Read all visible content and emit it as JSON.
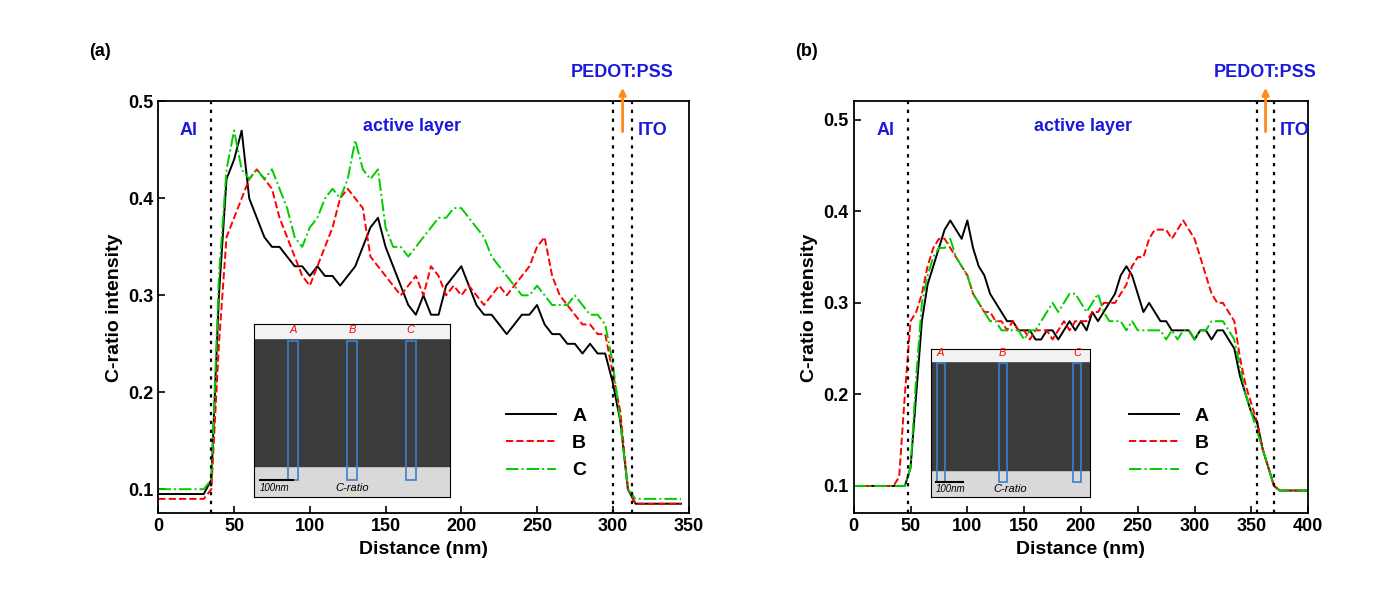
{
  "chart_data": [
    {
      "type": "line",
      "panel": "(a)",
      "x_label": "Distance (nm)",
      "y_label": "C-ratio intensity",
      "layers": {
        "left": "Al",
        "center": "active layer",
        "interlayer": "PEDOT:PSS",
        "right": "ITO"
      },
      "interfaces": [
        35,
        300,
        313
      ],
      "inset": {
        "labels": [
          "A",
          "B",
          "C"
        ],
        "scale": "100nm",
        "caption": "C-ratio"
      },
      "legend": "lower right",
      "xlim": [
        0,
        350
      ],
      "xticks": [
        0,
        50,
        100,
        150,
        200,
        250,
        300,
        350
      ],
      "ylim": [
        0.075,
        0.5
      ],
      "yticks": [
        0.1,
        0.2,
        0.3,
        0.4,
        0.5
      ],
      "x": [
        0,
        5,
        10,
        15,
        20,
        25,
        30,
        35,
        40,
        45,
        50,
        55,
        60,
        65,
        70,
        75,
        80,
        85,
        90,
        95,
        100,
        105,
        110,
        115,
        120,
        125,
        130,
        135,
        140,
        145,
        150,
        155,
        160,
        165,
        170,
        175,
        180,
        185,
        190,
        195,
        200,
        205,
        210,
        215,
        220,
        225,
        230,
        235,
        240,
        245,
        250,
        255,
        260,
        265,
        270,
        275,
        280,
        285,
        290,
        295,
        300,
        305,
        310,
        315,
        320,
        325,
        330,
        335,
        340,
        345
      ],
      "series": [
        {
          "name": "A",
          "color": "#000000",
          "line_style": "solid",
          "values": [
            0.095,
            0.095,
            0.095,
            0.095,
            0.095,
            0.095,
            0.095,
            0.11,
            0.3,
            0.42,
            0.44,
            0.47,
            0.4,
            0.38,
            0.36,
            0.35,
            0.35,
            0.34,
            0.33,
            0.33,
            0.32,
            0.33,
            0.32,
            0.32,
            0.31,
            0.32,
            0.33,
            0.35,
            0.37,
            0.38,
            0.35,
            0.33,
            0.31,
            0.29,
            0.28,
            0.3,
            0.28,
            0.28,
            0.31,
            0.32,
            0.33,
            0.31,
            0.29,
            0.28,
            0.28,
            0.27,
            0.26,
            0.27,
            0.28,
            0.28,
            0.29,
            0.27,
            0.26,
            0.26,
            0.25,
            0.25,
            0.24,
            0.25,
            0.24,
            0.24,
            0.21,
            0.17,
            0.1,
            0.085,
            0.085,
            0.085,
            0.085,
            0.085,
            0.085,
            0.085
          ]
        },
        {
          "name": "B",
          "color": "#ff0000",
          "line_style": "dashed",
          "values": [
            0.09,
            0.09,
            0.09,
            0.09,
            0.09,
            0.09,
            0.09,
            0.1,
            0.25,
            0.36,
            0.38,
            0.4,
            0.42,
            0.43,
            0.42,
            0.41,
            0.38,
            0.36,
            0.34,
            0.32,
            0.31,
            0.33,
            0.35,
            0.37,
            0.4,
            0.41,
            0.4,
            0.39,
            0.34,
            0.33,
            0.32,
            0.31,
            0.3,
            0.31,
            0.32,
            0.3,
            0.33,
            0.32,
            0.3,
            0.31,
            0.3,
            0.31,
            0.3,
            0.29,
            0.3,
            0.31,
            0.3,
            0.31,
            0.32,
            0.33,
            0.35,
            0.36,
            0.32,
            0.3,
            0.29,
            0.28,
            0.27,
            0.27,
            0.26,
            0.26,
            0.22,
            0.18,
            0.1,
            0.085,
            0.085,
            0.085,
            0.085,
            0.085,
            0.085,
            0.085
          ]
        },
        {
          "name": "C",
          "color": "#00cc00",
          "line_style": "dashdot",
          "values": [
            0.1,
            0.1,
            0.1,
            0.1,
            0.1,
            0.1,
            0.1,
            0.11,
            0.32,
            0.43,
            0.47,
            0.43,
            0.42,
            0.43,
            0.42,
            0.43,
            0.41,
            0.39,
            0.36,
            0.35,
            0.37,
            0.38,
            0.4,
            0.41,
            0.4,
            0.42,
            0.46,
            0.43,
            0.42,
            0.43,
            0.37,
            0.35,
            0.35,
            0.34,
            0.35,
            0.36,
            0.37,
            0.38,
            0.38,
            0.39,
            0.39,
            0.38,
            0.37,
            0.36,
            0.34,
            0.33,
            0.32,
            0.31,
            0.3,
            0.3,
            0.31,
            0.3,
            0.29,
            0.29,
            0.29,
            0.3,
            0.29,
            0.28,
            0.28,
            0.27,
            0.23,
            0.17,
            0.1,
            0.09,
            0.09,
            0.09,
            0.09,
            0.09,
            0.09,
            0.09
          ]
        }
      ]
    },
    {
      "type": "line",
      "panel": "(b)",
      "x_label": "Distance (nm)",
      "y_label": "C-ratio intensity",
      "layers": {
        "left": "Al",
        "center": "active layer",
        "interlayer": "PEDOT:PSS",
        "right": "ITO"
      },
      "interfaces": [
        48,
        355,
        370
      ],
      "inset": {
        "labels": [
          "A",
          "B",
          "C"
        ],
        "scale": "100nm",
        "caption": "C-ratio"
      },
      "legend": "lower right",
      "xlim": [
        0,
        400
      ],
      "xticks": [
        0,
        50,
        100,
        150,
        200,
        250,
        300,
        350,
        400
      ],
      "ylim": [
        0.07,
        0.52
      ],
      "yticks": [
        0.1,
        0.2,
        0.3,
        0.4,
        0.5
      ],
      "x": [
        0,
        5,
        10,
        15,
        20,
        25,
        30,
        35,
        40,
        45,
        50,
        55,
        60,
        65,
        70,
        75,
        80,
        85,
        90,
        95,
        100,
        105,
        110,
        115,
        120,
        125,
        130,
        135,
        140,
        145,
        150,
        155,
        160,
        165,
        170,
        175,
        180,
        185,
        190,
        195,
        200,
        205,
        210,
        215,
        220,
        225,
        230,
        235,
        240,
        245,
        250,
        255,
        260,
        265,
        270,
        275,
        280,
        285,
        290,
        295,
        300,
        305,
        310,
        315,
        320,
        325,
        330,
        335,
        340,
        345,
        350,
        355,
        360,
        365,
        370,
        375,
        380,
        385,
        390,
        395,
        400
      ],
      "series": [
        {
          "name": "A",
          "color": "#000000",
          "line_style": "solid",
          "values": [
            0.1,
            0.1,
            0.1,
            0.1,
            0.1,
            0.1,
            0.1,
            0.1,
            0.1,
            0.1,
            0.12,
            0.2,
            0.28,
            0.32,
            0.34,
            0.36,
            0.38,
            0.39,
            0.38,
            0.37,
            0.39,
            0.36,
            0.34,
            0.33,
            0.31,
            0.3,
            0.29,
            0.28,
            0.28,
            0.27,
            0.27,
            0.27,
            0.26,
            0.26,
            0.27,
            0.27,
            0.26,
            0.27,
            0.28,
            0.27,
            0.28,
            0.27,
            0.29,
            0.28,
            0.29,
            0.3,
            0.31,
            0.33,
            0.34,
            0.33,
            0.31,
            0.29,
            0.3,
            0.29,
            0.28,
            0.28,
            0.27,
            0.27,
            0.27,
            0.27,
            0.26,
            0.27,
            0.27,
            0.26,
            0.27,
            0.27,
            0.26,
            0.25,
            0.22,
            0.2,
            0.18,
            0.17,
            0.14,
            0.12,
            0.1,
            0.095,
            0.095,
            0.095,
            0.095,
            0.095,
            0.095
          ]
        },
        {
          "name": "B",
          "color": "#ff0000",
          "line_style": "dashed",
          "values": [
            0.1,
            0.1,
            0.1,
            0.1,
            0.1,
            0.1,
            0.1,
            0.1,
            0.11,
            0.2,
            0.28,
            0.29,
            0.31,
            0.34,
            0.36,
            0.37,
            0.37,
            0.36,
            0.35,
            0.34,
            0.33,
            0.31,
            0.3,
            0.29,
            0.29,
            0.28,
            0.28,
            0.27,
            0.28,
            0.27,
            0.27,
            0.26,
            0.27,
            0.27,
            0.27,
            0.26,
            0.27,
            0.28,
            0.27,
            0.28,
            0.28,
            0.28,
            0.29,
            0.29,
            0.3,
            0.3,
            0.3,
            0.31,
            0.32,
            0.34,
            0.35,
            0.35,
            0.37,
            0.38,
            0.38,
            0.38,
            0.37,
            0.38,
            0.39,
            0.38,
            0.37,
            0.35,
            0.33,
            0.31,
            0.3,
            0.3,
            0.29,
            0.28,
            0.24,
            0.21,
            0.19,
            0.17,
            0.14,
            0.12,
            0.1,
            0.095,
            0.095,
            0.095,
            0.095,
            0.095,
            0.095
          ]
        },
        {
          "name": "C",
          "color": "#00cc00",
          "line_style": "dashdot",
          "values": [
            0.1,
            0.1,
            0.1,
            0.1,
            0.1,
            0.1,
            0.1,
            0.1,
            0.1,
            0.1,
            0.12,
            0.22,
            0.3,
            0.33,
            0.35,
            0.36,
            0.36,
            0.37,
            0.35,
            0.34,
            0.33,
            0.31,
            0.3,
            0.29,
            0.28,
            0.28,
            0.27,
            0.27,
            0.27,
            0.27,
            0.26,
            0.27,
            0.27,
            0.28,
            0.29,
            0.3,
            0.29,
            0.3,
            0.31,
            0.31,
            0.3,
            0.29,
            0.3,
            0.31,
            0.29,
            0.28,
            0.28,
            0.28,
            0.27,
            0.28,
            0.27,
            0.27,
            0.27,
            0.27,
            0.27,
            0.26,
            0.27,
            0.26,
            0.27,
            0.27,
            0.26,
            0.27,
            0.27,
            0.28,
            0.28,
            0.28,
            0.27,
            0.26,
            0.23,
            0.2,
            0.18,
            0.16,
            0.14,
            0.12,
            0.1,
            0.095,
            0.095,
            0.095,
            0.095,
            0.095,
            0.095
          ]
        }
      ]
    }
  ]
}
